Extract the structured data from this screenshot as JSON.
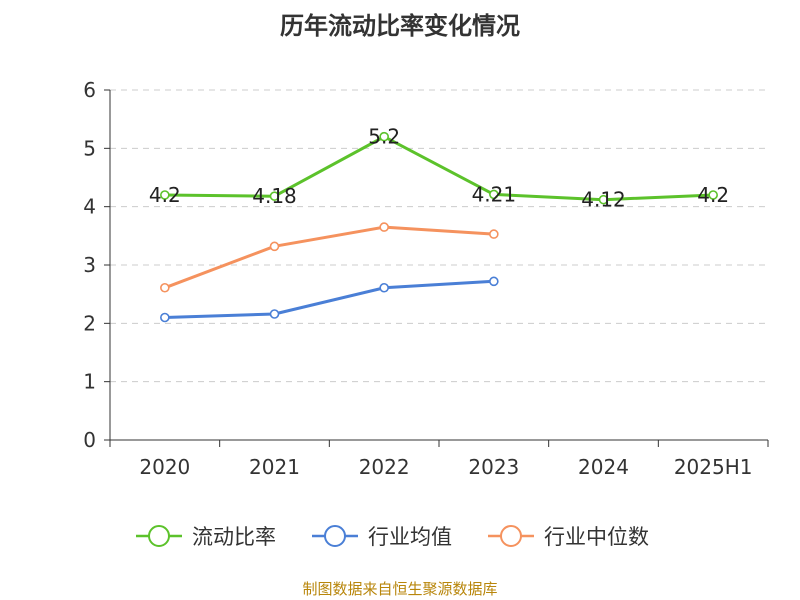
{
  "source_text": "制图数据来自恒生聚源数据库",
  "chart_data": {
    "type": "line",
    "title": "历年流动比率变化情况",
    "xlabel": "",
    "ylabel": "",
    "categories": [
      "2020",
      "2021",
      "2022",
      "2023",
      "2024",
      "2025H1"
    ],
    "ylim": [
      0,
      6
    ],
    "yticks": [
      0,
      1,
      2,
      3,
      4,
      5,
      6
    ],
    "grid": true,
    "legend_position": "bottom",
    "series": [
      {
        "name": "流动比率",
        "color": "#5cc22b",
        "values": [
          4.2,
          4.18,
          5.2,
          4.21,
          4.12,
          4.2
        ],
        "labels": [
          "4.2",
          "4.18",
          "5.2",
          "4.21",
          "4.12",
          "4.2"
        ]
      },
      {
        "name": "行业均值",
        "color": "#4a7fd6",
        "values": [
          2.1,
          2.16,
          2.61,
          2.72,
          null,
          null
        ]
      },
      {
        "name": "行业中位数",
        "color": "#f5925e",
        "values": [
          2.61,
          3.32,
          3.65,
          3.53,
          null,
          null
        ]
      }
    ]
  }
}
